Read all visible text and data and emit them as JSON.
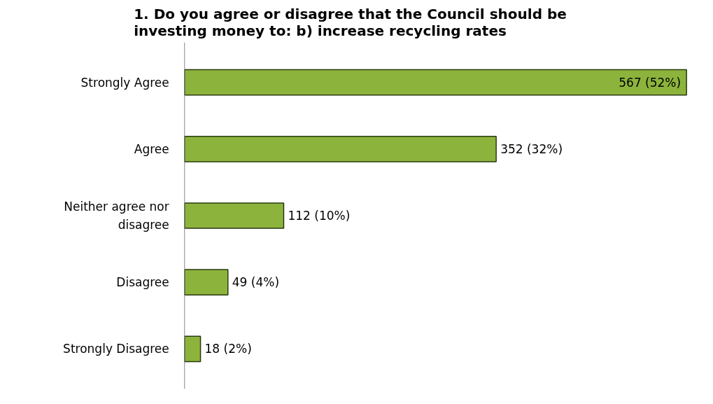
{
  "chart_data": {
    "type": "bar",
    "orientation": "horizontal",
    "title": "1. Do you agree or disagree that the Council should be investing money to: b) increase recycling rates",
    "categories": [
      "Strongly Agree",
      "Agree",
      "Neither agree nor disagree",
      "Disagree",
      "Strongly Disagree"
    ],
    "values": [
      567,
      352,
      112,
      49,
      18
    ],
    "value_labels": [
      "567 (52%)",
      "352 (32%)",
      "112 (10%)",
      "49 (4%)",
      "18 (2%)"
    ],
    "color": "#8cb43c",
    "grid": false
  }
}
